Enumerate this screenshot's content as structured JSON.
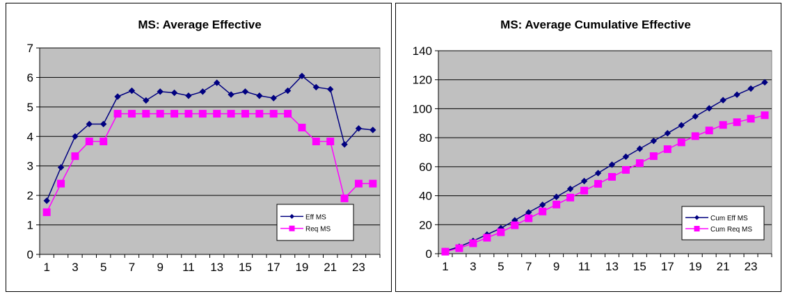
{
  "chart_data": [
    {
      "type": "line",
      "title": "MS: Average Effective",
      "xlabel": "",
      "ylabel": "",
      "x": [
        1,
        2,
        3,
        4,
        5,
        6,
        7,
        8,
        9,
        10,
        11,
        12,
        13,
        14,
        15,
        16,
        17,
        18,
        19,
        20,
        21,
        22,
        23,
        24
      ],
      "x_tick_labels": [
        "1",
        "3",
        "5",
        "7",
        "9",
        "11",
        "13",
        "15",
        "17",
        "19",
        "21",
        "23"
      ],
      "ylim": [
        0,
        7
      ],
      "y_tick_labels": [
        "0",
        "1",
        "2",
        "3",
        "4",
        "5",
        "6",
        "7"
      ],
      "grid": "horizontal",
      "legend_position": "bottom-right",
      "series": [
        {
          "name": "Eff MS",
          "color": "#000080",
          "marker": "diamond",
          "values": [
            1.82,
            2.95,
            4.0,
            4.42,
            4.42,
            5.35,
            5.55,
            5.22,
            5.52,
            5.48,
            5.38,
            5.52,
            5.82,
            5.42,
            5.52,
            5.38,
            5.3,
            5.55,
            6.05,
            5.67,
            5.6,
            3.73,
            4.27,
            4.22
          ]
        },
        {
          "name": "Req MS",
          "color": "#ff00ff",
          "marker": "square",
          "values": [
            1.43,
            2.4,
            3.33,
            3.83,
            3.83,
            4.77,
            4.77,
            4.77,
            4.77,
            4.77,
            4.77,
            4.77,
            4.77,
            4.77,
            4.77,
            4.77,
            4.77,
            4.77,
            4.3,
            3.83,
            3.83,
            1.9,
            2.4,
            2.4
          ]
        }
      ]
    },
    {
      "type": "line",
      "title": "MS:  Average Cumulative Effective",
      "xlabel": "",
      "ylabel": "",
      "x": [
        1,
        2,
        3,
        4,
        5,
        6,
        7,
        8,
        9,
        10,
        11,
        12,
        13,
        14,
        15,
        16,
        17,
        18,
        19,
        20,
        21,
        22,
        23,
        24
      ],
      "x_tick_labels": [
        "1",
        "3",
        "5",
        "7",
        "9",
        "11",
        "13",
        "15",
        "17",
        "19",
        "21",
        "23"
      ],
      "ylim": [
        0,
        140
      ],
      "y_tick_labels": [
        "0",
        "20",
        "40",
        "60",
        "80",
        "100",
        "120",
        "140"
      ],
      "grid": "horizontal",
      "legend_position": "bottom-right",
      "series": [
        {
          "name": "Cum Eff MS",
          "color": "#000080",
          "marker": "diamond",
          "values": [
            1.8,
            4.8,
            8.8,
            13.2,
            17.6,
            23.0,
            28.5,
            33.7,
            39.2,
            44.7,
            50.1,
            55.6,
            61.4,
            66.9,
            72.4,
            77.8,
            83.1,
            88.6,
            94.7,
            100.3,
            105.9,
            109.7,
            113.9,
            118.2
          ]
        },
        {
          "name": "Cum Req MS",
          "color": "#ff00ff",
          "marker": "square",
          "values": [
            1.4,
            3.8,
            7.2,
            11.0,
            14.8,
            19.6,
            24.4,
            29.1,
            33.9,
            38.7,
            43.5,
            48.2,
            53.0,
            57.8,
            62.5,
            67.3,
            72.1,
            76.8,
            81.1,
            85.0,
            88.8,
            90.7,
            93.1,
            95.5
          ]
        }
      ]
    }
  ]
}
